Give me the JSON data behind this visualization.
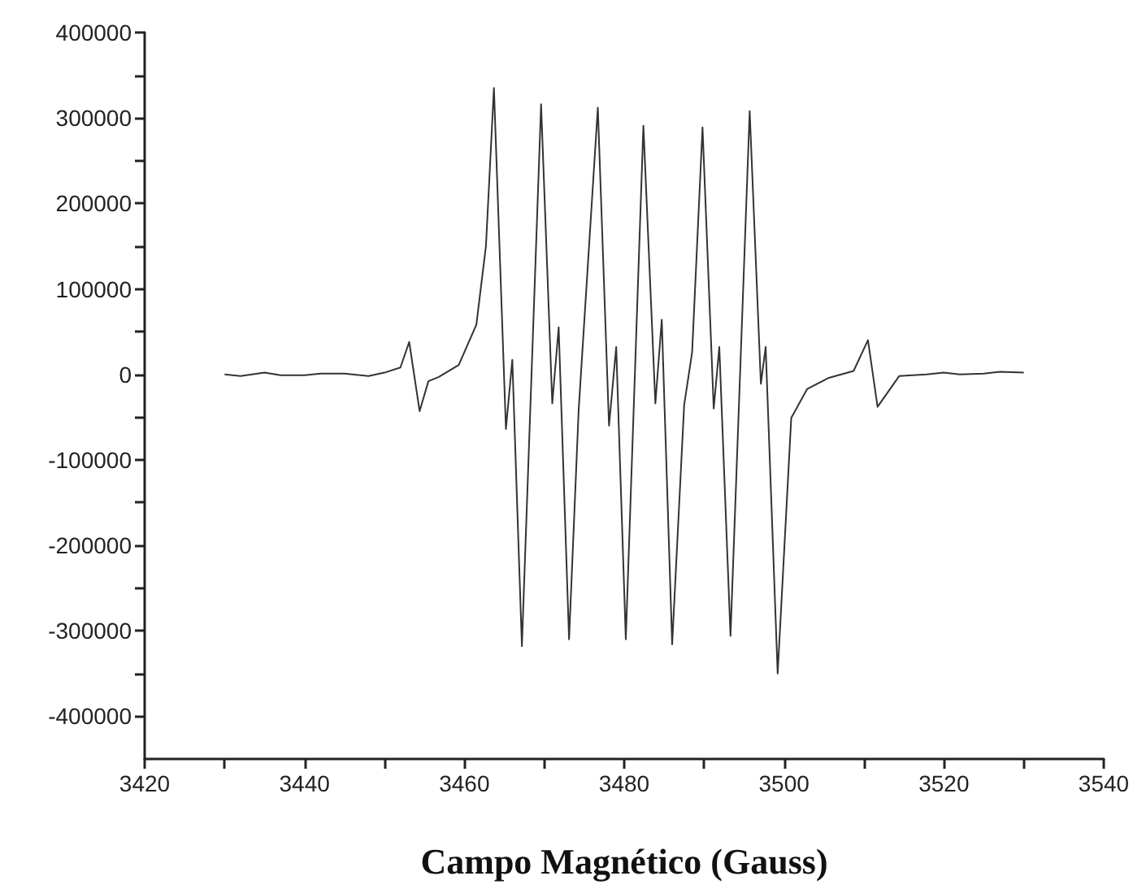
{
  "chart_data": {
    "type": "line",
    "xlabel": "Campo Magnético (Gauss)",
    "x": [
      3430,
      3432,
      3435,
      3437,
      3440,
      3442,
      3445,
      3448,
      3450,
      3452,
      3453.1,
      3454.4,
      3455.5,
      3456.8,
      3459.3,
      3461.5,
      3462.7,
      3463.7,
      3465.2,
      3466.0,
      3467.2,
      3469.6,
      3471.0,
      3471.8,
      3473.1,
      3474.3,
      3476.7,
      3478.1,
      3479.0,
      3480.2,
      3482.4,
      3483.9,
      3484.7,
      3486.0,
      3487.5,
      3488.5,
      3489.8,
      3491.2,
      3491.9,
      3493.3,
      3495.7,
      3497.1,
      3497.7,
      3499.2,
      3500.9,
      3502.9,
      3505.6,
      3508.7,
      3510.5,
      3511.7,
      3514.4,
      3517.8,
      3520,
      3522,
      3525,
      3527,
      3530
    ],
    "series": [
      {
        "color": "#333333",
        "values": [
          0,
          -2000,
          2000,
          -1000,
          -1000,
          1000,
          1000,
          -2000,
          2000,
          8000,
          38000,
          -43000,
          -8000,
          -3000,
          11000,
          58000,
          150000,
          335000,
          -64000,
          17000,
          -318000,
          316000,
          -34000,
          55000,
          -310000,
          -42000,
          312000,
          -60000,
          32000,
          -310000,
          291000,
          -34000,
          64000,
          -316000,
          -36000,
          26000,
          289000,
          -40000,
          32000,
          -306000,
          308000,
          -11000,
          32000,
          -350000,
          -51000,
          -17000,
          -4000,
          4000,
          40000,
          -38000,
          -2000,
          0,
          2000,
          0,
          1000,
          3000,
          2000
        ]
      }
    ],
    "xlim": [
      3420,
      3540
    ],
    "xticks": [
      3420,
      {
        "value": 3430,
        "label": null
      },
      3440,
      {
        "value": 3450,
        "label": null
      },
      3460,
      {
        "value": 3470,
        "label": null
      },
      3480,
      {
        "value": 3490,
        "label": null
      },
      3500,
      {
        "value": 3510,
        "label": null
      },
      3520,
      {
        "value": 3530,
        "label": null
      },
      3540
    ],
    "ylim": [
      -450000,
      400000
    ],
    "yticks": [
      -400000,
      {
        "value": -350000,
        "label": null
      },
      -300000,
      {
        "value": -250000,
        "label": null
      },
      -200000,
      {
        "value": -150000,
        "label": null
      },
      -100000,
      {
        "value": -50000,
        "label": null
      },
      0,
      {
        "value": 50000,
        "label": null
      },
      100000,
      {
        "value": 150000,
        "label": null
      },
      200000,
      {
        "value": 250000,
        "label": null
      },
      300000,
      {
        "value": 350000,
        "label": null
      },
      400000
    ],
    "line_style": "solid"
  }
}
